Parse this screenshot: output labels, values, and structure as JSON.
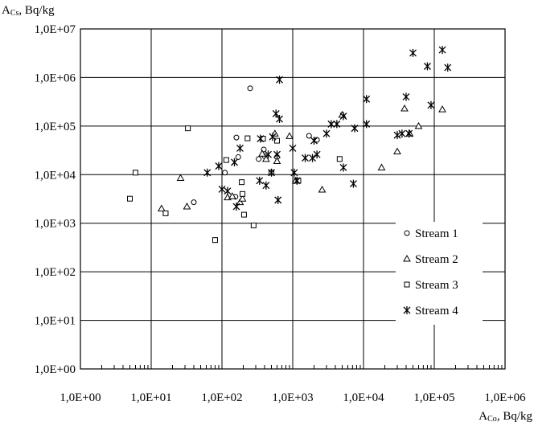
{
  "chart_data": {
    "type": "scatter",
    "x_scale": "log",
    "y_scale": "log",
    "xlim": [
      1,
      1000000
    ],
    "ylim": [
      1,
      10000000
    ],
    "grid": true,
    "legend_position": "bottom-right",
    "ylabel": {
      "main": "A",
      "sub": "Cs",
      "unit": ", Bq/kg"
    },
    "xlabel": {
      "main": "A",
      "sub": "Co",
      "unit": ", Bq/kg"
    },
    "y_ticks": [
      "1,0E+00",
      "1,0E+01",
      "1,0E+02",
      "1,0E+03",
      "1,0E+04",
      "1,0E+05",
      "1,0E+06",
      "1,0E+07"
    ],
    "x_ticks": [
      "1,0E+00",
      "1,0E+01",
      "1,0E+02",
      "1,0E+03",
      "1,0E+04",
      "1,0E+05",
      "1,0E+06"
    ],
    "series": [
      {
        "name": "Stream 1",
        "marker": "circle",
        "points": [
          [
            40,
            2700
          ],
          [
            110,
            11000
          ],
          [
            155,
            3500
          ],
          [
            160,
            58000
          ],
          [
            170,
            23000
          ],
          [
            250,
            600000
          ],
          [
            330,
            21000
          ],
          [
            390,
            33000
          ],
          [
            400,
            24000
          ],
          [
            600,
            23000
          ],
          [
            1700,
            63000
          ],
          [
            2200,
            52000
          ]
        ]
      },
      {
        "name": "Stream 2",
        "marker": "triangle",
        "points": [
          [
            14,
            2000
          ],
          [
            26,
            8500
          ],
          [
            32,
            2200
          ],
          [
            120,
            3400
          ],
          [
            140,
            3600
          ],
          [
            180,
            2700
          ],
          [
            195,
            3200
          ],
          [
            370,
            27000
          ],
          [
            420,
            21000
          ],
          [
            560,
            70000
          ],
          [
            600,
            19000
          ],
          [
            900,
            62000
          ],
          [
            1100,
            7500
          ],
          [
            2600,
            4900
          ],
          [
            5000,
            170000
          ],
          [
            18000,
            14000
          ],
          [
            30000,
            30000
          ],
          [
            38000,
            230000
          ],
          [
            45000,
            70000
          ],
          [
            60000,
            100000
          ],
          [
            130000,
            220000
          ]
        ]
      },
      {
        "name": "Stream 3",
        "marker": "square",
        "points": [
          [
            5,
            3200
          ],
          [
            6,
            11000
          ],
          [
            16,
            1600
          ],
          [
            33,
            90000
          ],
          [
            80,
            450
          ],
          [
            115,
            20000
          ],
          [
            190,
            7000
          ],
          [
            195,
            4000
          ],
          [
            205,
            1500
          ],
          [
            230,
            56000
          ],
          [
            280,
            900
          ],
          [
            380,
            55000
          ],
          [
            500,
            11000
          ],
          [
            600,
            50000
          ],
          [
            1200,
            7500
          ],
          [
            4600,
            21000
          ]
        ]
      },
      {
        "name": "Stream 4",
        "marker": "asterisk",
        "points": [
          [
            62,
            11000
          ],
          [
            90,
            15000
          ],
          [
            100,
            5000
          ],
          [
            120,
            4600
          ],
          [
            150,
            18000
          ],
          [
            160,
            2200
          ],
          [
            180,
            35000
          ],
          [
            350,
            55000
          ],
          [
            340,
            7500
          ],
          [
            420,
            6000
          ],
          [
            450,
            26000
          ],
          [
            500,
            11000
          ],
          [
            520,
            60000
          ],
          [
            580,
            180000
          ],
          [
            600,
            26000
          ],
          [
            620,
            3000
          ],
          [
            650,
            900000
          ],
          [
            650,
            140000
          ],
          [
            1000,
            35000
          ],
          [
            1050,
            11000
          ],
          [
            1150,
            7500
          ],
          [
            1500,
            22000
          ],
          [
            1900,
            22000
          ],
          [
            2000,
            50000
          ],
          [
            2200,
            26000
          ],
          [
            3000,
            70000
          ],
          [
            3500,
            110000
          ],
          [
            4200,
            110000
          ],
          [
            5200,
            160000
          ],
          [
            5200,
            14000
          ],
          [
            7200,
            6500
          ],
          [
            7500,
            90000
          ],
          [
            11000,
            360000
          ],
          [
            11000,
            110000
          ],
          [
            30000,
            65000
          ],
          [
            35000,
            70000
          ],
          [
            40000,
            400000
          ],
          [
            44000,
            70000
          ],
          [
            50000,
            3200000
          ],
          [
            80000,
            1700000
          ],
          [
            90000,
            270000
          ],
          [
            130000,
            3700000
          ],
          [
            155000,
            1600000
          ]
        ]
      }
    ]
  }
}
